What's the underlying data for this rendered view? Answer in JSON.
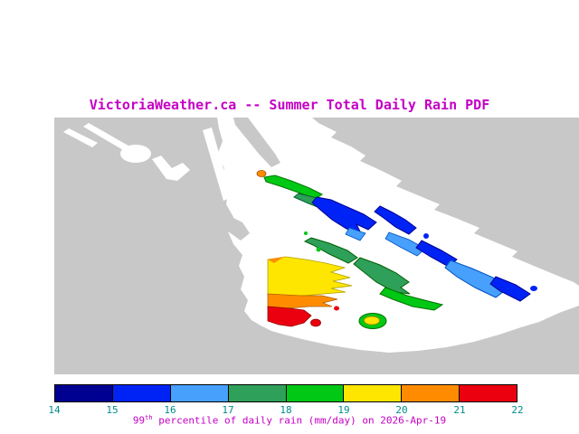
{
  "title": "VictoriaWeather.ca -- Summer Total Daily Rain PDF",
  "caption": {
    "percentile": "99",
    "percentile_suffix": "th",
    "text": " percentile of daily rain (mm/day) on 2026-Apr-19"
  },
  "colorbar": {
    "tick_labels": [
      "14",
      "15",
      "16",
      "17",
      "18",
      "19",
      "20",
      "21",
      "22"
    ],
    "segments": [
      {
        "range": "14-15",
        "color": "#000091"
      },
      {
        "range": "15-16",
        "color": "#0023F5"
      },
      {
        "range": "16-17",
        "color": "#46A0FC"
      },
      {
        "range": "17-18",
        "color": "#2FA05A"
      },
      {
        "range": "18-19",
        "color": "#00C814"
      },
      {
        "range": "19-20",
        "color": "#FFE600"
      },
      {
        "range": "20-21",
        "color": "#FF8C00"
      },
      {
        "range": "21-22",
        "color": "#EB0010"
      }
    ]
  },
  "palette": {
    "land": "#C8C8C8",
    "water": "#FFFFFF",
    "navy": "#000091",
    "blue": "#0023F5",
    "light-blue": "#46A0FC",
    "sea-green": "#2FA05A",
    "green": "#00C814",
    "yellow": "#FFE600",
    "orange": "#FF8C00",
    "red": "#EB0010",
    "title-text": "#C400C4",
    "tick-text": "#008C8C"
  }
}
